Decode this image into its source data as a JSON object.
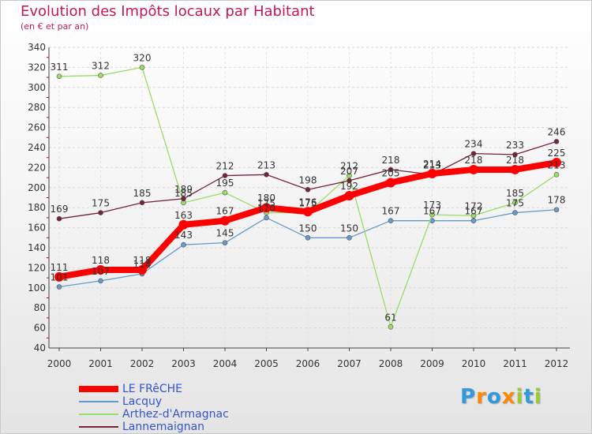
{
  "chart_data": {
    "type": "line",
    "title": "Evolution des Impôts locaux par Habitant",
    "subtitle": "(en € et par an)",
    "x": [
      "2000",
      "2001",
      "2002",
      "2003",
      "2004",
      "2005",
      "2006",
      "2007",
      "2008",
      "2009",
      "2010",
      "2011",
      "2012"
    ],
    "ylim": [
      40,
      340
    ],
    "yticks": [
      40,
      60,
      80,
      100,
      120,
      140,
      160,
      180,
      200,
      220,
      240,
      260,
      280,
      300,
      320,
      340
    ],
    "series": [
      {
        "name": "LE FRêCHE",
        "color": "#ff0000",
        "values": [
          111,
          118,
          118,
          163,
          167,
          180,
          176,
          192,
          205,
          214,
          218,
          218,
          225
        ]
      },
      {
        "name": "Lacquy",
        "color": "#6699cc",
        "values": [
          101,
          107,
          114,
          143,
          145,
          170,
          150,
          150,
          167,
          167,
          167,
          175,
          178
        ]
      },
      {
        "name": "Arthez-d'Armagnac",
        "color": "#99dd66",
        "values": [
          311,
          312,
          320,
          185,
          195,
          175,
          175,
          212,
          61,
          173,
          172,
          185,
          213
        ]
      },
      {
        "name": "Lannemaignan",
        "color": "#772233",
        "values": [
          169,
          175,
          185,
          189,
          212,
          213,
          198,
          207,
          218,
          213,
          234,
          233,
          246
        ]
      }
    ]
  },
  "logo": {
    "letters": [
      "P",
      "r",
      "o",
      "x",
      "i",
      "t",
      "i"
    ],
    "colors": [
      "#3399dd",
      "#ff8800",
      "#3399dd",
      "#ff8800",
      "#99cc33",
      "#3399dd",
      "#99cc33"
    ]
  }
}
